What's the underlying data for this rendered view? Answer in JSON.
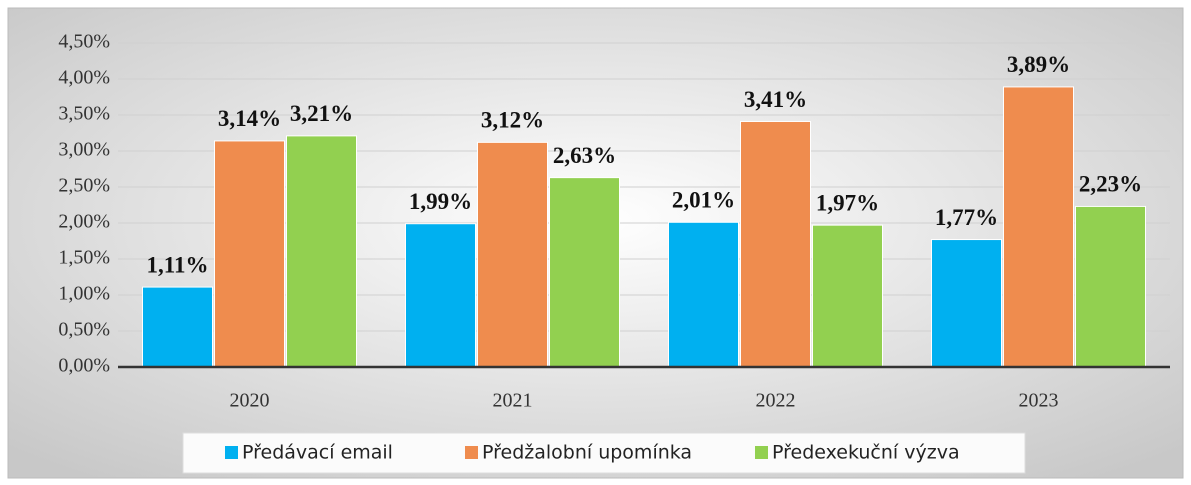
{
  "chart_data": {
    "type": "bar",
    "categories": [
      "2020",
      "2021",
      "2022",
      "2023"
    ],
    "series": [
      {
        "name": "Předávací email",
        "color": "#00b0f0",
        "values": [
          1.11,
          1.99,
          2.01,
          1.77
        ],
        "value_labels": [
          "1,11%",
          "1,99%",
          "2,01%",
          "1,77%"
        ]
      },
      {
        "name": "Předžalobní upomínka",
        "color": "#ef8c4e",
        "values": [
          3.14,
          3.12,
          3.41,
          3.89
        ],
        "value_labels": [
          "3,14%",
          "3,12%",
          "3,41%",
          "3,89%"
        ]
      },
      {
        "name": "Předexekuční výzva",
        "color": "#92d050",
        "values": [
          3.21,
          2.63,
          1.97,
          2.23
        ],
        "value_labels": [
          "3,21%",
          "2,63%",
          "1,97%",
          "2,23%"
        ]
      }
    ],
    "ylim": [
      0,
      4.5
    ],
    "yticks": [
      {
        "value": 0,
        "label": "0,00%"
      },
      {
        "value": 0.5,
        "label": "0,50%"
      },
      {
        "value": 1,
        "label": "1,00%"
      },
      {
        "value": 1.5,
        "label": "1,50%"
      },
      {
        "value": 2,
        "label": "2,00%"
      },
      {
        "value": 2.5,
        "label": "2,50%"
      },
      {
        "value": 3,
        "label": "3,00%"
      },
      {
        "value": 3.5,
        "label": "3,50%"
      },
      {
        "value": 4,
        "label": "4,00%"
      },
      {
        "value": 4.5,
        "label": "4,50%"
      }
    ],
    "grid": true,
    "legend": "bottom"
  }
}
